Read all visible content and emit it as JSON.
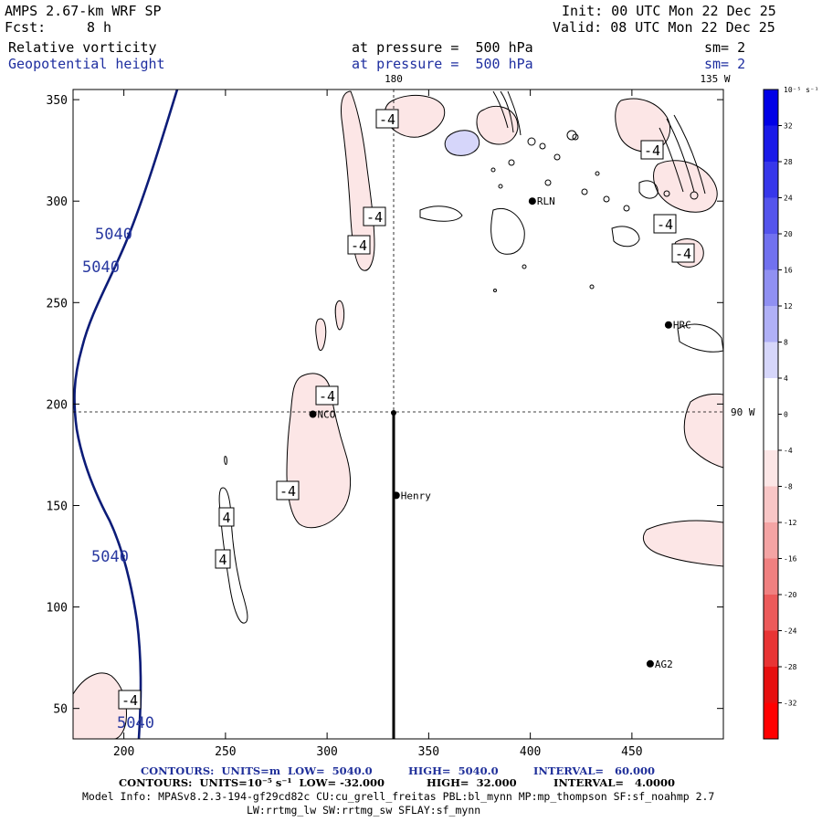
{
  "header": {
    "model": "AMPS 2.67-km WRF SP",
    "forecast_label": "Fcst:",
    "forecast_value": "8 h",
    "init": "Init: 00 UTC Mon 22 Dec 25",
    "valid": "Valid: 08 UTC Mon 22 Dec 25",
    "field1_name": "Relative vorticity",
    "field1_level": "at pressure =  500 hPa",
    "field1_smooth": "sm= 2",
    "field2_name": "Geopotential height",
    "field2_level": "at pressure =  500 hPa",
    "field2_smooth": "sm= 2"
  },
  "map_labels": {
    "lon_180": "180",
    "lon_135w": "135 W",
    "lon_90w": "90 W"
  },
  "stations": [
    {
      "name": "RLN",
      "x": 401,
      "y": 300
    },
    {
      "name": "HRC",
      "x": 468,
      "y": 239
    },
    {
      "name": "NCO",
      "x": 293,
      "y": 195
    },
    {
      "name": "Henry",
      "x": 334,
      "y": 155
    },
    {
      "name": "AG2",
      "x": 459,
      "y": 72
    }
  ],
  "contour_labels": {
    "height": [
      "5040",
      "5040",
      "5040",
      "5040"
    ],
    "vorticity": [
      "-4",
      "-4",
      "-4",
      "-4",
      "-4",
      "-4",
      "-4",
      "-4",
      "4",
      "4",
      "-4"
    ]
  },
  "colorbar": {
    "unit": "10⁻⁵ s⁻¹",
    "ticks": [
      "32",
      "28",
      "24",
      "20",
      "16",
      "12",
      "8",
      "4",
      "0",
      "-4",
      "-8",
      "-12",
      "-16",
      "-20",
      "-24",
      "-28",
      "-32"
    ],
    "colors": [
      "#0000e6",
      "#1a1ae8",
      "#3737ea",
      "#5454ec",
      "#7171ef",
      "#9090f2",
      "#b0b0f6",
      "#d6d6fa",
      "#ffffff",
      "#ffffff",
      "#fce6e6",
      "#f8c6c6",
      "#f4a4a4",
      "#f08080",
      "#ec5a5a",
      "#e83434",
      "#e60f0f",
      "#ff0000"
    ]
  },
  "footer": {
    "line1_a": "CONTOURS:  UNITS=m  LOW=  5040.0",
    "line1_b": "HIGH=  5040.0",
    "line1_c": "INTERVAL=   60.000",
    "line2_a": "CONTOURS:  UNITS=10⁻⁵ s⁻¹  LOW= -32.000",
    "line2_b": "HIGH=  32.000",
    "line2_c": "INTERVAL=   4.0000",
    "model_info": "Model Info: MPASv8.2.3-194-gf29cd82c CU:cu_grell_freitas PBL:bl_mynn MP:mp_thompson SF:sf_noahmp 2.7",
    "model_info2": "LW:rrtmg_lw SW:rrtmg_sw SFLAY:sf_mynn"
  },
  "chart_data": {
    "type": "contour",
    "title": "Relative vorticity and Geopotential height at 500 hPa",
    "x_range": [
      175,
      495
    ],
    "y_range": [
      35,
      355
    ],
    "x_ticks": [
      200,
      250,
      300,
      350,
      400,
      450
    ],
    "y_ticks": [
      50,
      100,
      150,
      200,
      250,
      300,
      350
    ],
    "height_contour_m": 5040,
    "vorticity_interval": 4,
    "cross_section_x": 333,
    "crosshair_y": 196
  }
}
